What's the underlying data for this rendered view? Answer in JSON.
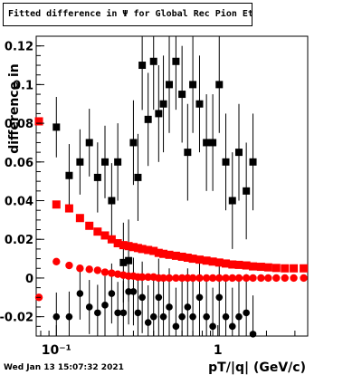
{
  "title": "Fitted difference in  Ψ  for Global Rec Pion EtapT",
  "footer_date": "Wed Jan 13 15:07:32 2021",
  "chart_data": {
    "type": "scatter",
    "title": "Fitted difference in  Ψ  for Global Rec Pion EtapT",
    "xlabel": "pT/|q| (GeV/c)",
    "ylabel": "difference in",
    "xscale": "log",
    "xlim": [
      0.075,
      3.6
    ],
    "ylim": [
      -0.03,
      0.125
    ],
    "xticks": [
      {
        "value": 0.1,
        "label": "10⁻¹"
      },
      {
        "value": 1,
        "label": "1"
      }
    ],
    "yticks": [
      -0.02,
      0,
      0.02,
      0.04,
      0.06,
      0.08,
      0.1,
      0.12
    ],
    "ytick_labels": [
      "-0.02",
      "0",
      "0.02",
      "0.04",
      "0.06",
      "0.08",
      "0.1",
      "0.12"
    ],
    "colors": {
      "red": "#ff0000",
      "black": "#000000"
    },
    "series": [
      {
        "color": "#ff0000",
        "marker": "square",
        "x": [
          0.078,
          0.1,
          0.12,
          0.14,
          0.16,
          0.18,
          0.2,
          0.22,
          0.24,
          0.26,
          0.28,
          0.3,
          0.32,
          0.34,
          0.37,
          0.4,
          0.43,
          0.46,
          0.5,
          0.55,
          0.6,
          0.65,
          0.7,
          0.77,
          0.85,
          0.93,
          1.02,
          1.12,
          1.23,
          1.35,
          1.5,
          1.65,
          1.85,
          2.05,
          2.3,
          2.6,
          2.95,
          3.4
        ],
        "y": [
          0.081,
          0.038,
          0.036,
          0.031,
          0.027,
          0.024,
          0.022,
          0.02,
          0.018,
          0.017,
          0.0165,
          0.016,
          0.0155,
          0.015,
          0.0145,
          0.014,
          0.013,
          0.0125,
          0.012,
          0.0115,
          0.011,
          0.0105,
          0.01,
          0.0095,
          0.009,
          0.0085,
          0.008,
          0.0075,
          0.007,
          0.0068,
          0.0065,
          0.006,
          0.0058,
          0.0055,
          0.0052,
          0.005,
          0.005,
          0.005
        ]
      },
      {
        "color": "#ff0000",
        "marker": "circle",
        "x": [
          0.078,
          0.1,
          0.12,
          0.14,
          0.16,
          0.18,
          0.2,
          0.22,
          0.24,
          0.26,
          0.28,
          0.3,
          0.32,
          0.34,
          0.37,
          0.4,
          0.43,
          0.46,
          0.5,
          0.55,
          0.6,
          0.65,
          0.7,
          0.77,
          0.85,
          0.93,
          1.02,
          1.12,
          1.23,
          1.35,
          1.5,
          1.65,
          1.85,
          2.05,
          2.3,
          2.6,
          2.95,
          3.4
        ],
        "y": [
          -0.01,
          0.0085,
          0.0065,
          0.005,
          0.0045,
          0.004,
          0.003,
          0.0025,
          0.002,
          0.0015,
          0.001,
          0.001,
          0.0005,
          0.0005,
          0.0005,
          0.0005,
          0.0,
          0.0,
          0.0,
          0.0,
          0.0,
          0.0,
          0.0,
          0.0,
          0.0,
          0.0,
          0.0,
          0.0,
          0.0,
          0.0,
          0.0,
          0.0,
          0.0,
          0.0,
          0.0,
          0.0,
          0.0,
          0.0
        ]
      },
      {
        "color": "#000000",
        "marker": "square",
        "x": [
          0.1,
          0.12,
          0.14,
          0.16,
          0.18,
          0.2,
          0.22,
          0.24,
          0.26,
          0.28,
          0.3,
          0.32,
          0.34,
          0.37,
          0.4,
          0.43,
          0.46,
          0.5,
          0.55,
          0.6,
          0.65,
          0.7,
          0.77,
          0.85,
          0.93,
          1.02,
          1.12,
          1.23,
          1.35,
          1.5,
          1.65
        ],
        "y": [
          0.078,
          0.053,
          0.06,
          0.07,
          0.052,
          0.06,
          0.04,
          0.06,
          0.008,
          0.009,
          0.07,
          0.052,
          0.11,
          0.082,
          0.112,
          0.085,
          0.09,
          0.1,
          0.112,
          0.095,
          0.065,
          0.1,
          0.09,
          0.07,
          0.07,
          0.1,
          0.06,
          0.04,
          0.065,
          0.045,
          0.06
        ]
      },
      {
        "color": "#000000",
        "marker": "circle",
        "x": [
          0.1,
          0.12,
          0.14,
          0.16,
          0.18,
          0.2,
          0.22,
          0.24,
          0.26,
          0.28,
          0.3,
          0.32,
          0.34,
          0.37,
          0.4,
          0.43,
          0.46,
          0.5,
          0.55,
          0.6,
          0.65,
          0.7,
          0.77,
          0.85,
          0.93,
          1.02,
          1.12,
          1.23,
          1.35,
          1.5,
          1.65
        ],
        "y": [
          -0.02,
          -0.02,
          -0.008,
          -0.015,
          -0.018,
          -0.014,
          -0.008,
          -0.018,
          -0.018,
          -0.007,
          -0.007,
          -0.018,
          -0.01,
          -0.023,
          -0.02,
          -0.01,
          -0.02,
          -0.015,
          -0.025,
          -0.02,
          -0.015,
          -0.02,
          -0.01,
          -0.02,
          -0.025,
          -0.01,
          -0.02,
          -0.025,
          -0.02,
          -0.018,
          -0.029
        ]
      }
    ],
    "error_scale": {
      "red_square": 0.0012,
      "red_circle": 0.0012,
      "black_square": 0.025,
      "black_circle": 0.02
    },
    "grid": false,
    "legend": "none"
  }
}
